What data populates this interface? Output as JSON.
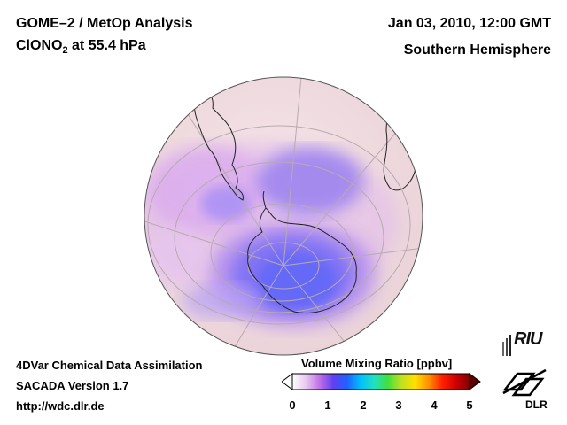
{
  "header": {
    "title_line1": "GOME–2 / MetOp Analysis",
    "title_line2_prefix": "ClONO",
    "title_line2_sub": "2",
    "title_line2_suffix": " at 55.4 hPa",
    "date": "Jan 03, 2010, 12:00 GMT",
    "region": "Southern Hemisphere"
  },
  "footer": {
    "line1": "4DVar Chemical Data Assimilation",
    "line2": "SACADA Version 1.7",
    "line3": "http://wdc.dlr.de"
  },
  "colorbar": {
    "title": "Volume Mixing Ratio [ppbv]",
    "ticks": [
      "0",
      "1",
      "2",
      "3",
      "4",
      "5"
    ],
    "range": [
      0,
      5
    ],
    "colors": [
      "#ffffff",
      "#e8c8f0",
      "#c070e8",
      "#6040f0",
      "#2060ff",
      "#00c0ff",
      "#20e0c0",
      "#40e040",
      "#c0e020",
      "#ffe000",
      "#ff9000",
      "#ff2000",
      "#d00000",
      "#800000"
    ]
  },
  "logos": {
    "riu": "RIU",
    "dlr": "DLR"
  },
  "map": {
    "projection": "orthographic-south-pole",
    "background_color": "#f2dfe2"
  }
}
